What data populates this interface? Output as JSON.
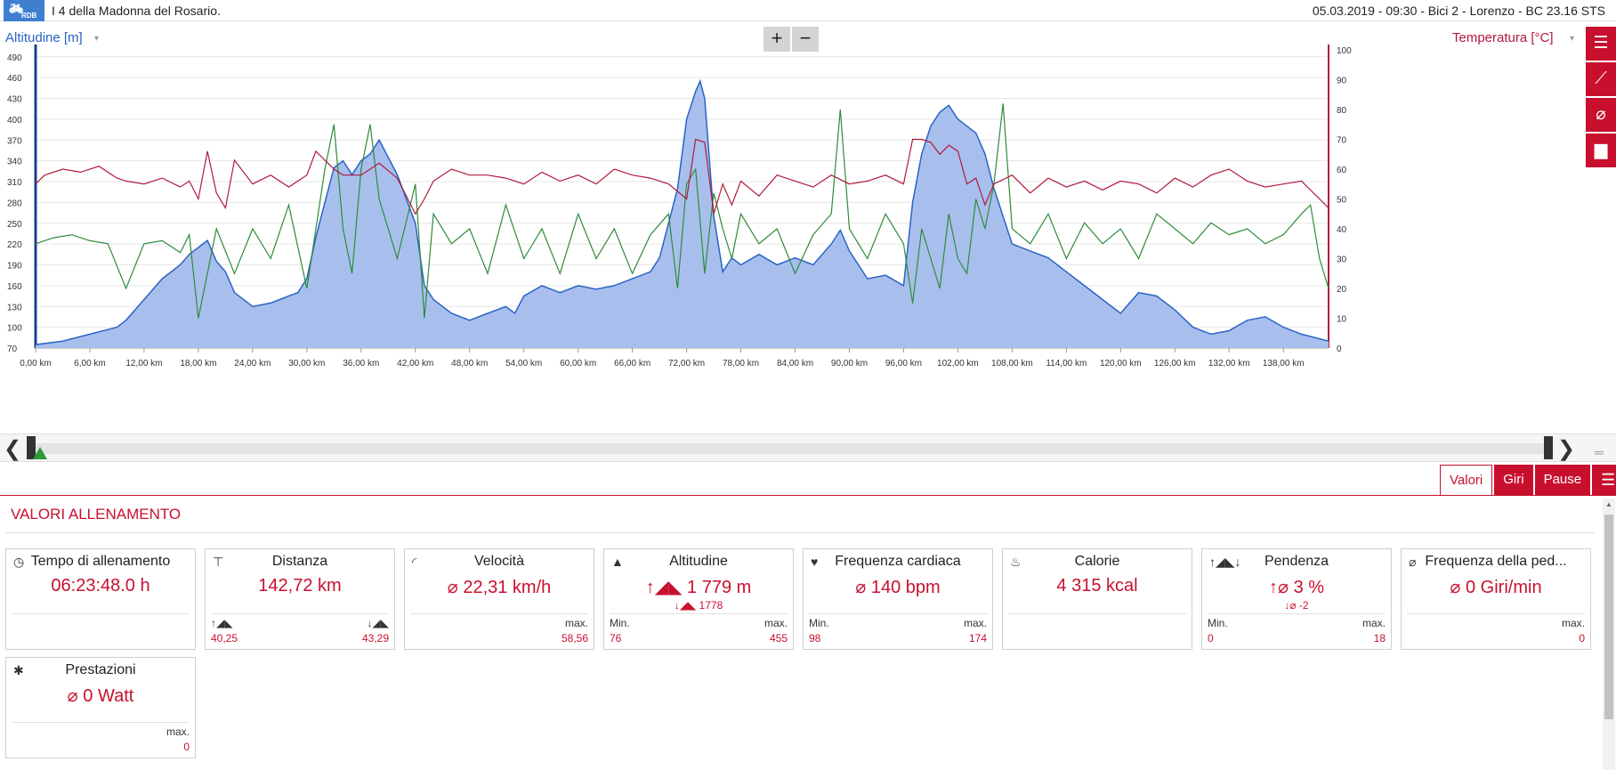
{
  "header": {
    "logo_text": "RDB",
    "title": "I 4 della Madonna del Rosario.",
    "meta": "05.03.2019  -  09:30  -  Bici 2  -  Lorenzo  -  BC 23.16 STS"
  },
  "chart": {
    "left_axis_label": "Altitudine [m]",
    "right_axis_label": "Temperatura [°C]",
    "zoom_in": "+",
    "zoom_out": "−",
    "colors": {
      "altitude": "#2a63c4",
      "altitude_fill": "#a8bfee",
      "temperature": "#b01a3b",
      "third_series": "#2e8b3a"
    }
  },
  "chart_data": {
    "type": "area",
    "x_unit": "km",
    "x_ticks": [
      "0,00 km",
      "6,00 km",
      "12,00 km",
      "18,00 km",
      "24,00 km",
      "30,00 km",
      "36,00 km",
      "42,00 km",
      "48,00 km",
      "54,00 km",
      "60,00 km",
      "66,00 km",
      "72,00 km",
      "78,00 km",
      "84,00 km",
      "90,00 km",
      "96,00 km",
      "102,00 km",
      "108,00 km",
      "114,00 km",
      "120,00 km",
      "126,00 km",
      "132,00 km",
      "138,00 km"
    ],
    "y_left_ticks": [
      490,
      460,
      430,
      400,
      370,
      340,
      310,
      280,
      250,
      220,
      190,
      160,
      130,
      100,
      70
    ],
    "y_right_ticks": [
      100,
      90,
      80,
      70,
      60,
      50,
      40,
      30,
      20,
      10,
      0
    ],
    "ylim_left": [
      70,
      500
    ],
    "ylim_right": [
      0,
      100
    ],
    "xlim": [
      0,
      143
    ],
    "series": [
      {
        "name": "Altitudine [m]",
        "axis": "left",
        "x": [
          0,
          3,
          6,
          9,
          10,
          12,
          14,
          16,
          17,
          18,
          19,
          20,
          21,
          22,
          24,
          26,
          27,
          28,
          29,
          30,
          31,
          32,
          33,
          34,
          35,
          36,
          37,
          38,
          40,
          42,
          43,
          44,
          46,
          48,
          50,
          52,
          53,
          54,
          56,
          58,
          60,
          62,
          64,
          66,
          68,
          69,
          70,
          71,
          72,
          73,
          73.5,
          74,
          75,
          76,
          77,
          78,
          80,
          82,
          84,
          86,
          87,
          88,
          89,
          90,
          92,
          94,
          96,
          97,
          98,
          99,
          100,
          101,
          102,
          103,
          104,
          105,
          106,
          108,
          110,
          112,
          114,
          116,
          118,
          120,
          122,
          124,
          126,
          128,
          130,
          132,
          134,
          136,
          138,
          140,
          143
        ],
        "y": [
          75,
          80,
          90,
          100,
          110,
          140,
          170,
          190,
          205,
          215,
          225,
          195,
          180,
          150,
          130,
          135,
          140,
          145,
          150,
          170,
          230,
          280,
          330,
          340,
          320,
          340,
          350,
          370,
          320,
          250,
          160,
          140,
          120,
          110,
          120,
          130,
          120,
          145,
          160,
          150,
          160,
          155,
          160,
          170,
          180,
          200,
          250,
          300,
          400,
          440,
          455,
          430,
          260,
          180,
          200,
          190,
          205,
          190,
          200,
          190,
          205,
          220,
          240,
          210,
          170,
          175,
          160,
          280,
          350,
          390,
          410,
          420,
          400,
          390,
          380,
          350,
          300,
          220,
          210,
          200,
          180,
          160,
          140,
          120,
          150,
          145,
          125,
          100,
          90,
          95,
          110,
          115,
          100,
          90,
          80
        ]
      },
      {
        "name": "Temperatura [°C]",
        "axis": "right",
        "x": [
          0,
          1,
          3,
          5,
          7,
          9,
          10,
          12,
          14,
          16,
          17,
          18,
          19,
          20,
          21,
          22,
          24,
          26,
          28,
          30,
          31,
          32,
          33,
          34,
          36,
          38,
          40,
          42,
          43,
          44,
          46,
          48,
          50,
          52,
          54,
          56,
          58,
          60,
          62,
          64,
          66,
          68,
          70,
          72,
          73,
          74,
          75,
          76,
          77,
          78,
          80,
          82,
          84,
          86,
          88,
          90,
          92,
          94,
          96,
          97,
          98,
          99,
          100,
          101,
          102,
          103,
          104,
          105,
          106,
          108,
          110,
          112,
          114,
          116,
          118,
          120,
          122,
          124,
          126,
          128,
          130,
          132,
          134,
          136,
          138,
          140,
          142,
          143
        ],
        "y": [
          55,
          58,
          60,
          59,
          61,
          57,
          56,
          55,
          57,
          54,
          56,
          50,
          66,
          52,
          47,
          63,
          55,
          58,
          54,
          58,
          66,
          63,
          60,
          58,
          58,
          62,
          57,
          45,
          50,
          56,
          60,
          58,
          58,
          57,
          55,
          59,
          56,
          58,
          55,
          60,
          58,
          57,
          55,
          50,
          70,
          69,
          45,
          55,
          48,
          56,
          51,
          58,
          56,
          54,
          58,
          55,
          56,
          58,
          55,
          70,
          70,
          69,
          65,
          68,
          66,
          55,
          57,
          48,
          55,
          58,
          52,
          57,
          54,
          56,
          53,
          56,
          55,
          52,
          57,
          54,
          58,
          60,
          56,
          54,
          55,
          56,
          50,
          47
        ]
      },
      {
        "name": "",
        "axis": "right",
        "x": [
          0,
          2,
          4,
          6,
          8,
          10,
          12,
          14,
          16,
          17,
          18,
          20,
          22,
          24,
          26,
          28,
          30,
          32,
          33,
          34,
          35,
          36,
          37,
          38,
          40,
          42,
          43,
          44,
          46,
          48,
          50,
          52,
          54,
          56,
          58,
          60,
          62,
          64,
          66,
          68,
          70,
          71,
          72,
          73,
          74,
          75,
          76,
          77,
          78,
          80,
          82,
          84,
          86,
          88,
          89,
          90,
          92,
          94,
          96,
          97,
          98,
          100,
          101,
          102,
          103,
          104,
          105,
          106,
          107,
          108,
          110,
          112,
          114,
          116,
          118,
          120,
          122,
          124,
          126,
          128,
          130,
          132,
          134,
          136,
          138,
          140,
          141,
          142,
          143
        ],
        "y": [
          35,
          37,
          38,
          36,
          35,
          20,
          35,
          36,
          32,
          38,
          10,
          40,
          25,
          40,
          30,
          48,
          20,
          60,
          75,
          40,
          25,
          60,
          75,
          50,
          30,
          55,
          10,
          45,
          35,
          40,
          25,
          48,
          30,
          40,
          25,
          45,
          30,
          40,
          25,
          38,
          45,
          20,
          55,
          60,
          25,
          52,
          40,
          30,
          45,
          35,
          40,
          25,
          38,
          45,
          80,
          40,
          30,
          45,
          35,
          15,
          40,
          20,
          45,
          30,
          25,
          50,
          40,
          55,
          82,
          40,
          35,
          45,
          30,
          42,
          35,
          40,
          30,
          45,
          40,
          35,
          42,
          38,
          40,
          35,
          38,
          45,
          48,
          30,
          20
        ]
      }
    ]
  },
  "side_tools": [
    {
      "icon": "list-icon",
      "glyph": "☰"
    },
    {
      "icon": "line-chart-icon",
      "glyph": "⟋"
    },
    {
      "icon": "average-icon",
      "glyph": "⌀"
    },
    {
      "icon": "bar-chart-icon",
      "glyph": "▆"
    }
  ],
  "tabs": {
    "values": "Valori",
    "laps": "Giri",
    "pauses": "Pause",
    "menu": "☰"
  },
  "section": {
    "title": "VALORI ALLENAMENTO"
  },
  "cards": [
    {
      "id": "time",
      "icon": "clock-icon",
      "glyph": "◷",
      "name": "Tempo di allenamento",
      "value": "06:23:48.0 h",
      "sub": "",
      "foot_l_lbl": "",
      "foot_l_val": "",
      "foot_r_lbl": "",
      "foot_r_val": ""
    },
    {
      "id": "distance",
      "icon": "signpost-icon",
      "glyph": "⊤",
      "name": "Distanza",
      "value": "142,72 km",
      "sub": "",
      "foot_l_lbl": "↑◢◣",
      "foot_l_val": "40,25",
      "foot_r_lbl": "↓◢◣",
      "foot_r_val": "43,29"
    },
    {
      "id": "speed",
      "icon": "speedometer-icon",
      "glyph": "◜",
      "name": "Velocità",
      "value": "⌀ 22,31 km/h",
      "sub": "",
      "foot_l_lbl": "",
      "foot_l_val": "",
      "foot_r_lbl": "max.",
      "foot_r_val": "58,56"
    },
    {
      "id": "altitude",
      "icon": "mountain-icon",
      "glyph": "▲",
      "name": "Altitudine",
      "value": "↑◢◣ 1 779 m",
      "sub": "↓◢◣ 1778",
      "foot_l_lbl": "Min.",
      "foot_l_val": "76",
      "foot_r_lbl": "max.",
      "foot_r_val": "455"
    },
    {
      "id": "heart",
      "icon": "heart-icon",
      "glyph": "♥",
      "name": "Frequenza cardiaca",
      "value": "⌀ 140 bpm",
      "sub": "",
      "foot_l_lbl": "Min.",
      "foot_l_val": "98",
      "foot_r_lbl": "max.",
      "foot_r_val": "174"
    },
    {
      "id": "calories",
      "icon": "flame-icon",
      "glyph": "♨",
      "name": "Calorie",
      "value": "4 315 kcal",
      "sub": "",
      "foot_l_lbl": "",
      "foot_l_val": "",
      "foot_r_lbl": "",
      "foot_r_val": ""
    },
    {
      "id": "slope",
      "icon": "slope-icon",
      "glyph": "↑◢◣↓",
      "name": "Pendenza",
      "value": "↑⌀ 3 %",
      "sub": "↓⌀  -2",
      "foot_l_lbl": "Min.",
      "foot_l_val": "0",
      "foot_r_lbl": "max.",
      "foot_r_val": "18"
    },
    {
      "id": "cadence",
      "icon": "cadence-icon",
      "glyph": "⌀",
      "name": "Frequenza della ped...",
      "value": "⌀ 0 Giri/min",
      "sub": "",
      "foot_l_lbl": "",
      "foot_l_val": "",
      "foot_r_lbl": "max.",
      "foot_r_val": "0"
    },
    {
      "id": "power",
      "icon": "lightbulb-icon",
      "glyph": "✱",
      "name": "Prestazioni",
      "value": "⌀ 0 Watt",
      "sub": "",
      "foot_l_lbl": "",
      "foot_l_val": "",
      "foot_r_lbl": "max.",
      "foot_r_val": "0"
    }
  ]
}
